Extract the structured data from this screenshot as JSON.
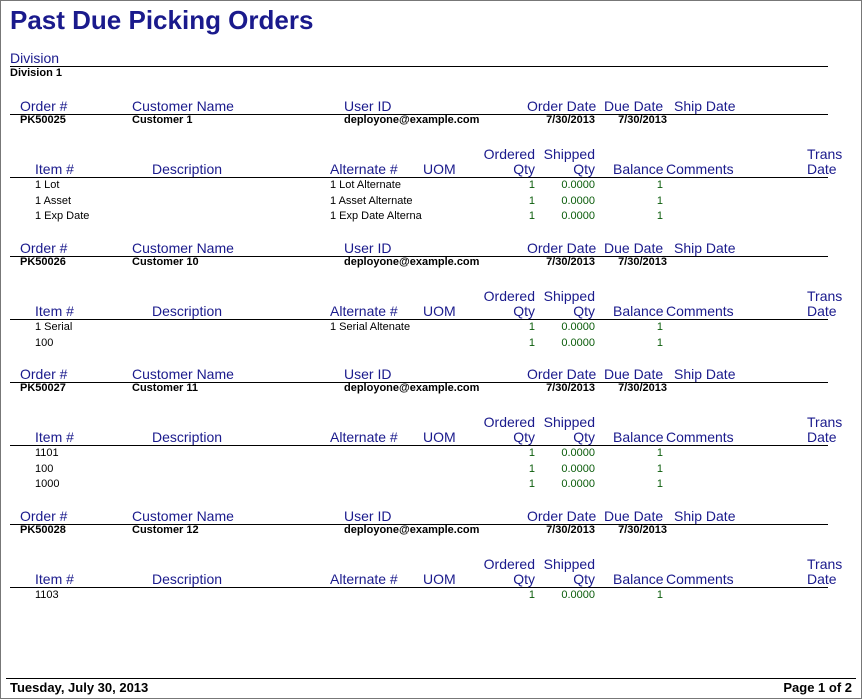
{
  "report": {
    "title": "Past Due Picking Orders",
    "division_label": "Division",
    "division_value": "Division 1"
  },
  "order_headers": {
    "order_no": "Order #",
    "customer_name": "Customer Name",
    "user_id": "User ID",
    "order_date": "Order Date",
    "due_date": "Due Date",
    "ship_date": "Ship Date"
  },
  "item_headers": {
    "item_no": "Item #",
    "description": "Description",
    "alternate_no": "Alternate #",
    "uom": "UOM",
    "ordered_line1": "Ordered",
    "ordered_line2": "Qty",
    "shipped_line1": "Shipped",
    "shipped_line2": "Qty",
    "balance": "Balance",
    "comments": "Comments",
    "trans_line1": "Trans",
    "trans_line2": "Date"
  },
  "orders": [
    {
      "order_no": "PK50025",
      "customer": "Customer 1",
      "user": "deployone@example.com",
      "order_date": "7/30/2013",
      "due_date": "7/30/2013",
      "ship_date": "",
      "items": [
        {
          "item": "1 Lot",
          "description": "",
          "alternate": "1 Lot Alternate",
          "uom": "",
          "ordered": "1",
          "shipped": "0.0000",
          "balance": "1"
        },
        {
          "item": "1 Asset",
          "description": "",
          "alternate": "1 Asset Alternate",
          "uom": "",
          "ordered": "1",
          "shipped": "0.0000",
          "balance": "1"
        },
        {
          "item": "1 Exp Date",
          "description": "",
          "alternate": "1 Exp Date Alterna",
          "uom": "",
          "ordered": "1",
          "shipped": "0.0000",
          "balance": "1"
        }
      ]
    },
    {
      "order_no": "PK50026",
      "customer": "Customer 10",
      "user": "deployone@example.com",
      "order_date": "7/30/2013",
      "due_date": "7/30/2013",
      "ship_date": "",
      "items": [
        {
          "item": "1 Serial",
          "description": "",
          "alternate": "1 Serial Altenate",
          "uom": "",
          "ordered": "1",
          "shipped": "0.0000",
          "balance": "1"
        },
        {
          "item": "100",
          "description": "",
          "alternate": "",
          "uom": "",
          "ordered": "1",
          "shipped": "0.0000",
          "balance": "1"
        }
      ]
    },
    {
      "order_no": "PK50027",
      "customer": "Customer 11",
      "user": "deployone@example.com",
      "order_date": "7/30/2013",
      "due_date": "7/30/2013",
      "ship_date": "",
      "items": [
        {
          "item": "1101",
          "description": "",
          "alternate": "",
          "uom": "",
          "ordered": "1",
          "shipped": "0.0000",
          "balance": "1"
        },
        {
          "item": "100",
          "description": "",
          "alternate": "",
          "uom": "",
          "ordered": "1",
          "shipped": "0.0000",
          "balance": "1"
        },
        {
          "item": "1000",
          "description": "",
          "alternate": "",
          "uom": "",
          "ordered": "1",
          "shipped": "0.0000",
          "balance": "1"
        }
      ]
    },
    {
      "order_no": "PK50028",
      "customer": "Customer 12",
      "user": "deployone@example.com",
      "order_date": "7/30/2013",
      "due_date": "7/30/2013",
      "ship_date": "",
      "items": [
        {
          "item": "1103",
          "description": "",
          "alternate": "",
          "uom": "",
          "ordered": "1",
          "shipped": "0.0000",
          "balance": "1"
        }
      ]
    }
  ],
  "footer": {
    "date": "Tuesday, July 30, 2013",
    "page": "Page 1 of 2"
  }
}
